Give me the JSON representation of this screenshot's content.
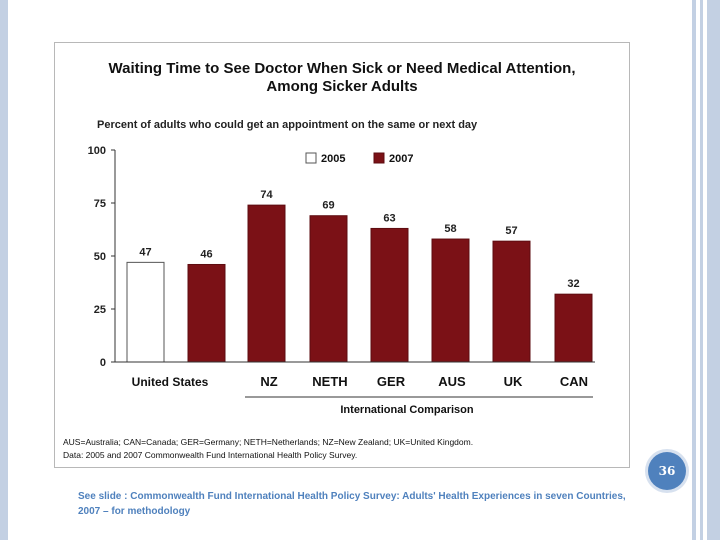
{
  "chart_data": {
    "type": "bar",
    "title_line1": "Waiting Time to See Doctor When Sick or Need Medical Attention,",
    "title_line2": "Among Sicker Adults",
    "subtitle": "Percent of adults who could get an appointment on the same or next day",
    "ylim": [
      0,
      100
    ],
    "y_ticks": [
      "0",
      "25",
      "50",
      "75",
      "100"
    ],
    "legend": [
      {
        "label": "2005",
        "color": "#ffffff"
      },
      {
        "label": "2007",
        "color": "#7b1116"
      }
    ],
    "bars": [
      {
        "value": 47,
        "series": "2005",
        "label": "47",
        "color": "#ffffff"
      },
      {
        "value": 46,
        "series": "2007",
        "label": "46",
        "color": "#7b1116"
      },
      {
        "value": 74,
        "series": "2007",
        "label": "74",
        "color": "#7b1116"
      },
      {
        "value": 69,
        "series": "2007",
        "label": "69",
        "color": "#7b1116"
      },
      {
        "value": 63,
        "series": "2007",
        "label": "63",
        "color": "#7b1116"
      },
      {
        "value": 58,
        "series": "2007",
        "label": "58",
        "color": "#7b1116"
      },
      {
        "value": 57,
        "series": "2007",
        "label": "57",
        "color": "#7b1116"
      },
      {
        "value": 32,
        "series": "2007",
        "label": "32",
        "color": "#7b1116"
      }
    ],
    "categories": [
      "United States",
      "NZ",
      "NETH",
      "GER",
      "AUS",
      "UK",
      "CAN"
    ],
    "group_label": "International Comparison",
    "footnote_1": "AUS=Australia; CAN=Canada; GER=Germany; NETH=Netherlands; NZ=New Zealand; UK=United Kingdom.",
    "footnote_2": "Data: 2005 and 2007 Commonwealth Fund International Health Policy Survey."
  },
  "slide": {
    "page_number": "36",
    "see_slide_note": "See slide : Commonwealth Fund International Health Policy Survey: Adults' Health Experiences in seven Countries, 2007 – for methodology"
  }
}
